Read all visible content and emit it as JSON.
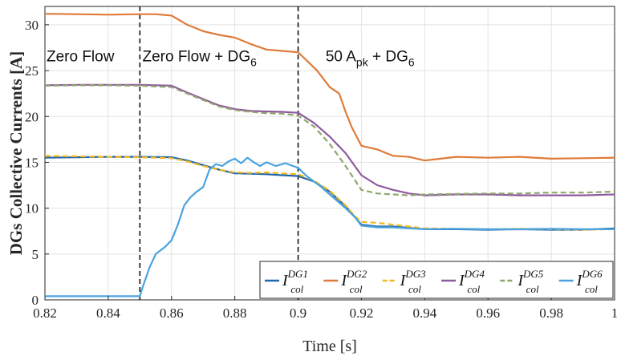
{
  "chart_data": {
    "type": "line",
    "xlabel": "Time [s]",
    "ylabel": "DGs Collective Currents [A]",
    "xlim": [
      0.82,
      1.0
    ],
    "ylim": [
      0,
      32
    ],
    "x_ticks": [
      "0.82",
      "0.84",
      "0.86",
      "0.88",
      "0.9",
      "0.92",
      "0.94",
      "0.96",
      "0.98",
      "1"
    ],
    "y_ticks": [
      "0",
      "5",
      "10",
      "15",
      "20",
      "25",
      "30"
    ],
    "grid": true,
    "legend_position": "bottom-right",
    "vlines": [
      0.85,
      0.9
    ],
    "annotations": [
      {
        "text": "Zero Flow",
        "x": 0.8205,
        "y": 26.0
      },
      {
        "text": "Zero Flow + DG",
        "sub": "6",
        "x": 0.8508,
        "y": 26.0
      },
      {
        "text": "50 A",
        "sub": "pk",
        "text2": " + DG",
        "sub2": "6",
        "x": 0.9087,
        "y": 26.0
      }
    ],
    "series": [
      {
        "name": "I_col^DG1",
        "base": "I",
        "sub": "col",
        "sup": "DG1",
        "color": "#2166ac",
        "dash": "solid",
        "points": [
          [
            0.82,
            15.5
          ],
          [
            0.83,
            15.55
          ],
          [
            0.84,
            15.6
          ],
          [
            0.85,
            15.6
          ],
          [
            0.86,
            15.55
          ],
          [
            0.865,
            15.2
          ],
          [
            0.87,
            14.7
          ],
          [
            0.875,
            14.2
          ],
          [
            0.88,
            13.8
          ],
          [
            0.885,
            13.75
          ],
          [
            0.89,
            13.7
          ],
          [
            0.895,
            13.6
          ],
          [
            0.9,
            13.5
          ],
          [
            0.905,
            12.9
          ],
          [
            0.91,
            11.8
          ],
          [
            0.915,
            10.2
          ],
          [
            0.918,
            9.0
          ],
          [
            0.92,
            8.2
          ],
          [
            0.925,
            8.0
          ],
          [
            0.93,
            8.0
          ],
          [
            0.94,
            7.7
          ],
          [
            0.95,
            7.7
          ],
          [
            0.96,
            7.65
          ],
          [
            0.97,
            7.7
          ],
          [
            0.98,
            7.65
          ],
          [
            0.99,
            7.65
          ],
          [
            1.0,
            7.8
          ]
        ]
      },
      {
        "name": "I_col^DG2",
        "base": "I",
        "sub": "col",
        "sup": "DG2",
        "color": "#e07b39",
        "dash": "solid",
        "points": [
          [
            0.82,
            31.2
          ],
          [
            0.83,
            31.15
          ],
          [
            0.84,
            31.1
          ],
          [
            0.85,
            31.15
          ],
          [
            0.855,
            31.15
          ],
          [
            0.86,
            31.0
          ],
          [
            0.862,
            30.6
          ],
          [
            0.865,
            30.0
          ],
          [
            0.87,
            29.3
          ],
          [
            0.875,
            28.9
          ],
          [
            0.88,
            28.6
          ],
          [
            0.885,
            27.9
          ],
          [
            0.89,
            27.3
          ],
          [
            0.895,
            27.15
          ],
          [
            0.9,
            27.0
          ],
          [
            0.903,
            26.0
          ],
          [
            0.906,
            25.0
          ],
          [
            0.91,
            23.2
          ],
          [
            0.913,
            22.5
          ],
          [
            0.915,
            20.5
          ],
          [
            0.917,
            18.8
          ],
          [
            0.92,
            16.8
          ],
          [
            0.925,
            16.4
          ],
          [
            0.93,
            15.7
          ],
          [
            0.935,
            15.6
          ],
          [
            0.94,
            15.2
          ],
          [
            0.945,
            15.4
          ],
          [
            0.95,
            15.6
          ],
          [
            0.96,
            15.5
          ],
          [
            0.97,
            15.6
          ],
          [
            0.98,
            15.4
          ],
          [
            0.99,
            15.45
          ],
          [
            1.0,
            15.5
          ]
        ]
      },
      {
        "name": "I_col^DG3",
        "base": "I",
        "sub": "col",
        "sup": "DG3",
        "color": "#f2b91f",
        "dash": "dash",
        "points": [
          [
            0.82,
            15.7
          ],
          [
            0.83,
            15.65
          ],
          [
            0.84,
            15.6
          ],
          [
            0.85,
            15.55
          ],
          [
            0.86,
            15.45
          ],
          [
            0.865,
            15.1
          ],
          [
            0.87,
            14.6
          ],
          [
            0.875,
            14.2
          ],
          [
            0.88,
            13.9
          ],
          [
            0.885,
            13.85
          ],
          [
            0.89,
            13.9
          ],
          [
            0.895,
            13.8
          ],
          [
            0.9,
            13.7
          ],
          [
            0.905,
            13.0
          ],
          [
            0.91,
            11.9
          ],
          [
            0.915,
            10.3
          ],
          [
            0.918,
            9.1
          ],
          [
            0.92,
            8.5
          ],
          [
            0.925,
            8.4
          ],
          [
            0.93,
            8.2
          ],
          [
            0.94,
            7.8
          ],
          [
            0.95,
            7.75
          ],
          [
            0.96,
            7.7
          ],
          [
            0.97,
            7.75
          ],
          [
            0.98,
            7.7
          ],
          [
            0.99,
            7.65
          ],
          [
            1.0,
            7.7
          ]
        ]
      },
      {
        "name": "I_col^DG4",
        "base": "I",
        "sub": "col",
        "sup": "DG4",
        "color": "#8e5a9e",
        "dash": "solid",
        "points": [
          [
            0.82,
            23.4
          ],
          [
            0.83,
            23.45
          ],
          [
            0.84,
            23.45
          ],
          [
            0.85,
            23.45
          ],
          [
            0.86,
            23.35
          ],
          [
            0.865,
            22.6
          ],
          [
            0.87,
            21.9
          ],
          [
            0.875,
            21.2
          ],
          [
            0.88,
            20.8
          ],
          [
            0.885,
            20.6
          ],
          [
            0.89,
            20.55
          ],
          [
            0.895,
            20.5
          ],
          [
            0.9,
            20.4
          ],
          [
            0.905,
            19.3
          ],
          [
            0.91,
            17.8
          ],
          [
            0.915,
            16.0
          ],
          [
            0.92,
            13.6
          ],
          [
            0.925,
            12.5
          ],
          [
            0.93,
            12.0
          ],
          [
            0.935,
            11.6
          ],
          [
            0.94,
            11.4
          ],
          [
            0.95,
            11.5
          ],
          [
            0.96,
            11.5
          ],
          [
            0.97,
            11.4
          ],
          [
            0.98,
            11.4
          ],
          [
            0.99,
            11.4
          ],
          [
            1.0,
            11.5
          ]
        ]
      },
      {
        "name": "I_col^DG5",
        "base": "I",
        "sub": "col",
        "sup": "DG5",
        "color": "#8fa66b",
        "dash": "dash",
        "points": [
          [
            0.82,
            23.35
          ],
          [
            0.83,
            23.4
          ],
          [
            0.84,
            23.4
          ],
          [
            0.85,
            23.35
          ],
          [
            0.86,
            23.2
          ],
          [
            0.865,
            22.5
          ],
          [
            0.87,
            21.8
          ],
          [
            0.875,
            21.1
          ],
          [
            0.88,
            20.7
          ],
          [
            0.885,
            20.5
          ],
          [
            0.89,
            20.35
          ],
          [
            0.895,
            20.3
          ],
          [
            0.9,
            20.1
          ],
          [
            0.905,
            18.9
          ],
          [
            0.91,
            17.0
          ],
          [
            0.915,
            14.6
          ],
          [
            0.92,
            12.0
          ],
          [
            0.925,
            11.6
          ],
          [
            0.93,
            11.5
          ],
          [
            0.935,
            11.4
          ],
          [
            0.94,
            11.5
          ],
          [
            0.95,
            11.55
          ],
          [
            0.96,
            11.6
          ],
          [
            0.97,
            11.6
          ],
          [
            0.98,
            11.7
          ],
          [
            0.99,
            11.7
          ],
          [
            1.0,
            11.8
          ]
        ]
      },
      {
        "name": "I_col^DG6",
        "base": "I",
        "sub": "col",
        "sup": "DG6",
        "color": "#4aa3df",
        "dash": "solid",
        "points": [
          [
            0.82,
            0.4
          ],
          [
            0.83,
            0.4
          ],
          [
            0.84,
            0.4
          ],
          [
            0.85,
            0.4
          ],
          [
            0.851,
            1.5
          ],
          [
            0.853,
            3.5
          ],
          [
            0.855,
            5.0
          ],
          [
            0.858,
            5.8
          ],
          [
            0.86,
            6.5
          ],
          [
            0.862,
            8.2
          ],
          [
            0.864,
            10.3
          ],
          [
            0.866,
            11.2
          ],
          [
            0.868,
            11.8
          ],
          [
            0.87,
            12.3
          ],
          [
            0.872,
            14.2
          ],
          [
            0.874,
            14.8
          ],
          [
            0.876,
            14.6
          ],
          [
            0.878,
            15.1
          ],
          [
            0.88,
            15.4
          ],
          [
            0.882,
            14.9
          ],
          [
            0.884,
            15.5
          ],
          [
            0.886,
            15.0
          ],
          [
            0.888,
            14.6
          ],
          [
            0.89,
            15.0
          ],
          [
            0.893,
            14.6
          ],
          [
            0.896,
            14.9
          ],
          [
            0.9,
            14.4
          ],
          [
            0.903,
            13.4
          ],
          [
            0.907,
            12.4
          ],
          [
            0.91,
            11.5
          ],
          [
            0.915,
            10.0
          ],
          [
            0.918,
            9.0
          ],
          [
            0.92,
            8.1
          ],
          [
            0.925,
            7.9
          ],
          [
            0.93,
            7.9
          ],
          [
            0.94,
            7.7
          ],
          [
            0.95,
            7.75
          ],
          [
            0.96,
            7.7
          ],
          [
            0.97,
            7.7
          ],
          [
            0.98,
            7.75
          ],
          [
            0.99,
            7.7
          ],
          [
            1.0,
            7.7
          ]
        ]
      }
    ]
  }
}
